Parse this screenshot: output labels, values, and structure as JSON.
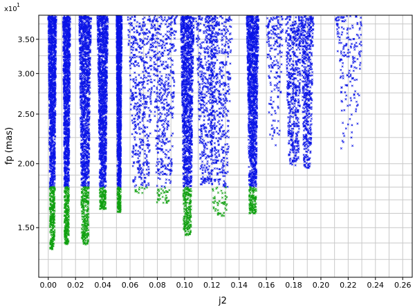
{
  "chart_data": {
    "type": "scatter",
    "xlabel": "j2",
    "ylabel": "fp (mas)",
    "y_multiplier": {
      "base": "x10",
      "exponent": "1"
    },
    "xlim": [
      -0.007,
      0.267
    ],
    "ylim": [
      1.2,
      3.9
    ],
    "y_scale": "log",
    "grid": true,
    "x_ticks": [
      "0.00",
      "0.02",
      "0.04",
      "0.06",
      "0.08",
      "0.10",
      "0.12",
      "0.14",
      "0.16",
      "0.18",
      "0.20",
      "0.22",
      "0.24",
      "0.26"
    ],
    "x_tick_values": [
      0.0,
      0.02,
      0.04,
      0.06,
      0.08,
      0.1,
      0.12,
      0.14,
      0.16,
      0.18,
      0.2,
      0.22,
      0.24,
      0.26
    ],
    "y_ticks": [
      "1.50",
      "2.00",
      "2.50",
      "3.00",
      "3.50"
    ],
    "y_tick_values": [
      1.5,
      2.0,
      2.5,
      3.0,
      3.5
    ],
    "threshold_y": 1.8,
    "series": [
      {
        "color": "#0a14e6",
        "marker": "x",
        "region": "above_threshold"
      },
      {
        "color": "#10a010",
        "marker": "x",
        "region": "below_threshold"
      }
    ],
    "clusters": [
      {
        "x": 0.003,
        "width": 0.006,
        "y_min": 1.36,
        "density": "dense"
      },
      {
        "x": 0.0135,
        "width": 0.0055,
        "y_min": 1.39,
        "density": "dense"
      },
      {
        "x": 0.027,
        "width": 0.009,
        "y_min": 1.39,
        "density": "dense"
      },
      {
        "x": 0.04,
        "width": 0.008,
        "y_min": 1.63,
        "density": "dense"
      },
      {
        "x": 0.052,
        "width": 0.004,
        "y_min": 1.61,
        "density": "dense"
      },
      {
        "x": 0.068,
        "width": 0.013,
        "y_min": 1.74,
        "density": "medium"
      },
      {
        "x": 0.085,
        "width": 0.012,
        "y_min": 1.66,
        "density": "medium"
      },
      {
        "x": 0.102,
        "width": 0.01,
        "y_min": 1.45,
        "density": "dense"
      },
      {
        "x": 0.116,
        "width": 0.01,
        "y_min": 1.82,
        "density": "medium"
      },
      {
        "x": 0.126,
        "width": 0.012,
        "y_min": 1.58,
        "density": "medium"
      },
      {
        "x": 0.15,
        "width": 0.009,
        "y_min": 1.6,
        "density": "dense"
      },
      {
        "x": 0.166,
        "width": 0.008,
        "y_min": 2.05,
        "density": "sparse"
      },
      {
        "x": 0.18,
        "width": 0.008,
        "y_min": 1.98,
        "density": "medium"
      },
      {
        "x": 0.19,
        "width": 0.006,
        "y_min": 1.95,
        "density": "medium"
      },
      {
        "x": 0.221,
        "width": 0.013,
        "y_min": 1.95,
        "density": "sparse"
      }
    ]
  }
}
